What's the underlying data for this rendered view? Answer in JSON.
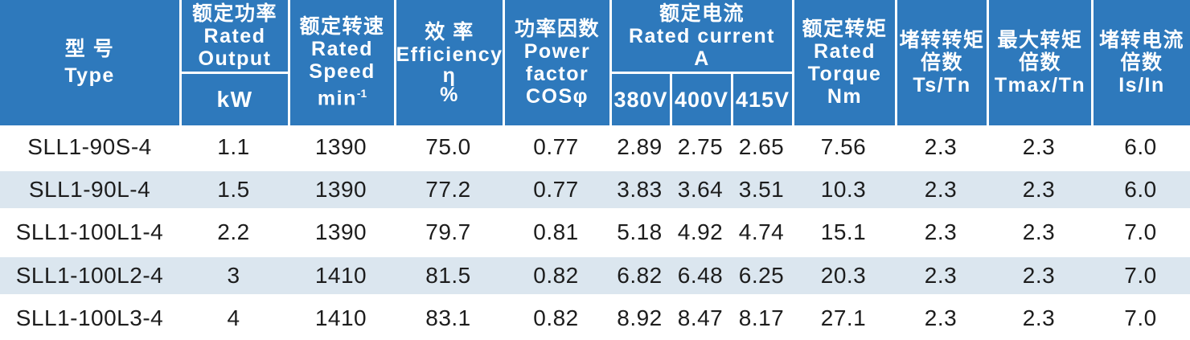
{
  "colors": {
    "header_bg": "#2e79bc",
    "stripe_bg": "#dbe6ef",
    "header_text": "#ffffff",
    "body_text": "#1d1d1d"
  },
  "header": {
    "type": {
      "zh": "型 号",
      "en": "Type"
    },
    "rated_output": {
      "zh": "额定功率",
      "en_l1": "Rated",
      "en_l2": "Output",
      "unit": "kW"
    },
    "rated_speed": {
      "zh": "额定转速",
      "en_l1": "Rated",
      "en_l2": "Speed",
      "unit_base": "min",
      "unit_exp": "-1"
    },
    "efficiency": {
      "zh": "效 率",
      "en": "Efficiency",
      "symbol": "η",
      "unit": "%"
    },
    "power_factor": {
      "zh": "功率因数",
      "en_l1": "Power",
      "en_l2": "factor",
      "symbol": "COSφ"
    },
    "rated_current": {
      "zh": "额定电流",
      "en": "Rated current",
      "unit": "A",
      "v1": "380V",
      "v2": "400V",
      "v3": "415V"
    },
    "rated_torque": {
      "zh": "额定转矩",
      "en_l1": "Rated",
      "en_l2": "Torque",
      "unit": "Nm"
    },
    "locked_rotor_torque": {
      "zh_l1": "堵转转矩",
      "zh_l2": "倍数",
      "ratio": "Ts/Tn"
    },
    "max_torque": {
      "zh_l1": "最大转矩",
      "zh_l2": "倍数",
      "ratio": "Tmax/Tn"
    },
    "locked_rotor_current": {
      "zh_l1": "堵转电流",
      "zh_l2": "倍数",
      "ratio": "Is/In"
    }
  },
  "chart_data": {
    "type": "table",
    "title": "",
    "columns": [
      "型号 Type",
      "额定功率 Rated Output kW",
      "额定转速 Rated Speed min-1",
      "效率 Efficiency η %",
      "功率因数 Power factor COSφ",
      "额定电流 Rated current A 380V",
      "额定电流 Rated current A 400V",
      "额定电流 Rated current A 415V",
      "额定转矩 Rated Torque Nm",
      "堵转转矩倍数 Ts/Tn",
      "最大转矩倍数 Tmax/Tn",
      "堵转电流倍数 Is/In"
    ],
    "rows": [
      [
        "SLL1-90S-4",
        "1.1",
        "1390",
        "75.0",
        "0.77",
        "2.89",
        "2.75",
        "2.65",
        "7.56",
        "2.3",
        "2.3",
        "6.0"
      ],
      [
        "SLL1-90L-4",
        "1.5",
        "1390",
        "77.2",
        "0.77",
        "3.83",
        "3.64",
        "3.51",
        "10.3",
        "2.3",
        "2.3",
        "6.0"
      ],
      [
        "SLL1-100L1-4",
        "2.2",
        "1390",
        "79.7",
        "0.81",
        "5.18",
        "4.92",
        "4.74",
        "15.1",
        "2.3",
        "2.3",
        "7.0"
      ],
      [
        "SLL1-100L2-4",
        "3",
        "1410",
        "81.5",
        "0.82",
        "6.82",
        "6.48",
        "6.25",
        "20.3",
        "2.3",
        "2.3",
        "7.0"
      ],
      [
        "SLL1-100L3-4",
        "4",
        "1410",
        "83.1",
        "0.82",
        "8.92",
        "8.47",
        "8.17",
        "27.1",
        "2.3",
        "2.3",
        "7.0"
      ]
    ]
  }
}
